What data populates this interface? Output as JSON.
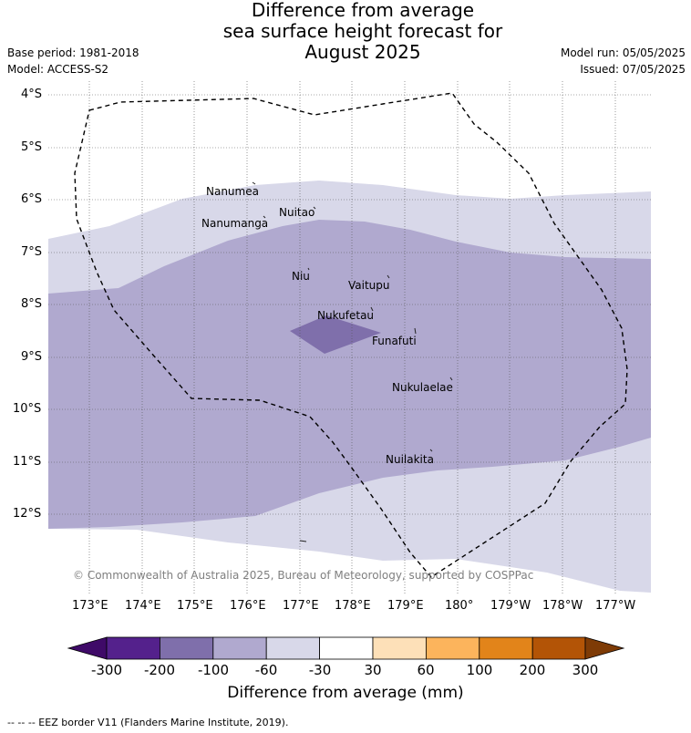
{
  "title": {
    "line1": "Difference from average",
    "line2": "sea surface height forecast for",
    "line3": "August 2025"
  },
  "meta_left": {
    "base_period": "Base period: 1981-2018",
    "model": "Model: ACCESS-S2"
  },
  "meta_right": {
    "model_run": "Model run: 05/05/2025",
    "issued": "Issued: 07/05/2025"
  },
  "lat_labels": [
    "4°S",
    "5°S",
    "6°S",
    "7°S",
    "8°S",
    "9°S",
    "10°S",
    "11°S",
    "12°S"
  ],
  "lon_labels": [
    "173°E",
    "174°E",
    "175°E",
    "176°E",
    "177°E",
    "178°E",
    "179°E",
    "180°",
    "179°W",
    "178°W",
    "177°W"
  ],
  "places": [
    {
      "name": "Nanumea",
      "lon": 176.13,
      "lat": -5.67
    },
    {
      "name": "Nuitao",
      "lon": 177.33,
      "lat": -6.11
    },
    {
      "name": "Nanumanga",
      "lon": 176.32,
      "lat": -6.29
    },
    {
      "name": "Niu",
      "lon": 177.16,
      "lat": -7.29
    },
    {
      "name": "Vaitupu",
      "lon": 178.68,
      "lat": -7.48
    },
    {
      "name": "Nukufetau",
      "lon": 178.37,
      "lat": -8.02
    },
    {
      "name": "Funafuti",
      "lon": 179.19,
      "lat": -8.52
    },
    {
      "name": "Nukulaelae",
      "lon": 179.83,
      "lat": -9.38
    },
    {
      "name": "Nuilakita",
      "lon": 179.23,
      "lat": -10.78
    }
  ],
  "colorbar": {
    "title": "Difference from average (mm)",
    "labels": [
      "-300",
      "-200",
      "-100",
      "-60",
      "-30",
      "30",
      "60",
      "100",
      "200",
      "300"
    ],
    "colors": [
      "#3f0a68",
      "#54218c",
      "#7f6fab",
      "#b0a9cf",
      "#d8d8e9",
      "#ffffff",
      "#fde0b8",
      "#fcb45c",
      "#e2841a",
      "#b35406",
      "#7e3b06"
    ]
  },
  "copyright": "© Commonwealth of Australia 2025, Bureau of Meteorology, supported by COSPPac",
  "eez_note": "--  --  -- EEZ border V11 (Flanders Marine Institute, 2019)."
}
